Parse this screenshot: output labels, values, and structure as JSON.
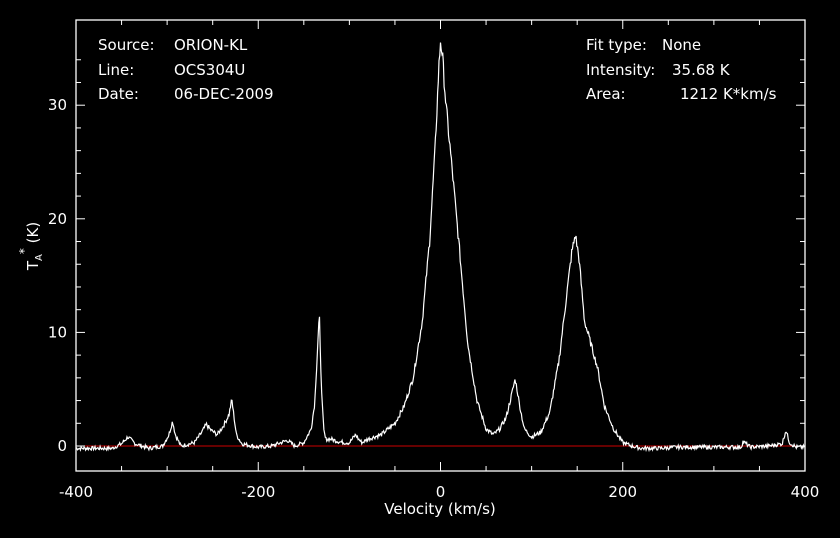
{
  "info_left": {
    "source_label": "Source:",
    "source_value": "ORION-KL",
    "line_label": "Line:",
    "line_value": "OCS304U",
    "date_label": "Date:",
    "date_value": "06-DEC-2009"
  },
  "info_right": {
    "fit_label": "Fit type:",
    "fit_value": "None",
    "intensity_label": "Intensity:",
    "intensity_value": "35.68 K",
    "area_label": "Area:",
    "area_value": "1212 K*km/s"
  },
  "chart_data": {
    "type": "line",
    "title": "",
    "xlabel": "Velocity (km/s)",
    "ylabel": "T",
    "ylabel_sub": "A",
    "ylabel_sup": "*",
    "ylabel_unit": " (K)",
    "xlim": [
      -400,
      400
    ],
    "ylim": [
      -2.2,
      37.5
    ],
    "x_ticks": [
      -400,
      -200,
      0,
      200,
      400
    ],
    "y_ticks": [
      0,
      10,
      20,
      30
    ],
    "grid": false,
    "colors": {
      "background": "#000000",
      "axes": "#ffffff",
      "spectrum": "#ffffff",
      "baseline": "#cc0000"
    },
    "series": [
      {
        "x": [
          -400,
          -360,
          -350,
          -343,
          -335,
          -320,
          -305,
          -298,
          -294,
          -291,
          -285,
          -270,
          -262,
          -257,
          -252,
          -245,
          -238,
          -232,
          -229,
          -227,
          -224,
          -218,
          -200,
          -185,
          -175,
          -168,
          -160,
          -150,
          -142,
          -138,
          -135,
          -133,
          -132,
          -130,
          -128,
          -126,
          -120,
          -112,
          -106,
          -100,
          -96,
          -93,
          -90,
          -86,
          -80,
          -65,
          -50,
          -40,
          -30,
          -20,
          -12,
          -6,
          -2,
          0,
          2,
          6,
          12,
          20,
          30,
          40,
          50,
          58,
          65,
          72,
          78,
          82,
          84,
          87,
          92,
          100,
          110,
          120,
          130,
          138,
          144,
          148,
          152,
          158,
          165,
          172,
          180,
          190,
          200,
          210,
          220,
          240,
          260,
          280,
          300,
          320,
          330,
          332,
          340,
          360,
          375,
          379,
          383,
          390,
          400
        ],
        "y": [
          -0.2,
          -0.2,
          0.2,
          0.8,
          0.2,
          -0.2,
          0.0,
          1.0,
          2.2,
          1.0,
          0.0,
          0.3,
          1.2,
          1.9,
          1.4,
          1.0,
          1.8,
          2.8,
          4.1,
          2.8,
          1.0,
          0.2,
          -0.1,
          0.0,
          0.3,
          0.5,
          0.0,
          0.3,
          1.5,
          3.8,
          8.5,
          11.7,
          8.5,
          4.0,
          1.3,
          0.6,
          0.6,
          0.4,
          0.3,
          0.3,
          0.7,
          1.0,
          0.6,
          0.3,
          0.6,
          1.0,
          2.0,
          3.5,
          6.0,
          11.0,
          18.0,
          26.0,
          33.0,
          35.68,
          34.5,
          30.0,
          25.0,
          18.0,
          9.0,
          4.0,
          1.5,
          1.0,
          1.5,
          2.5,
          4.5,
          5.9,
          5.0,
          3.5,
          1.5,
          0.8,
          1.2,
          3.0,
          7.5,
          13.0,
          17.0,
          18.6,
          16.5,
          11.0,
          9.0,
          7.0,
          3.5,
          1.5,
          0.3,
          0.0,
          -0.2,
          -0.2,
          -0.1,
          -0.1,
          -0.1,
          -0.1,
          -0.1,
          0.4,
          -0.1,
          0.0,
          0.2,
          1.4,
          0.3,
          -0.1,
          -0.1
        ]
      }
    ]
  }
}
